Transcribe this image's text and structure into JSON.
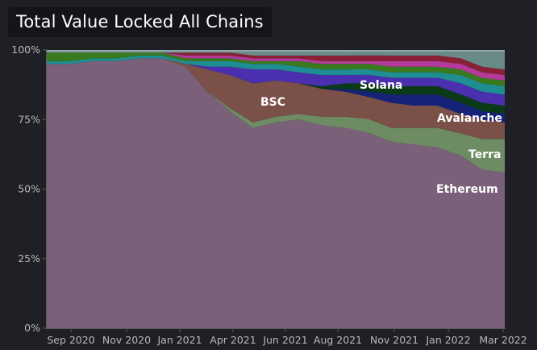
{
  "title": "Total Value Locked All Chains",
  "chart_data": {
    "type": "area",
    "stacked": true,
    "normalized": true,
    "title": "Total Value Locked All Chains",
    "x": [
      "2020-08-01",
      "2020-09-01",
      "2020-10-01",
      "2020-11-01",
      "2020-12-01",
      "2021-01-01",
      "2021-02-01",
      "2021-03-01",
      "2021-04-01",
      "2021-05-01",
      "2021-06-01",
      "2021-07-01",
      "2021-08-01",
      "2021-09-01",
      "2021-10-01",
      "2021-11-01",
      "2021-12-01",
      "2022-01-01",
      "2022-02-01",
      "2022-03-01",
      "2022-03-31"
    ],
    "x_ticks": [
      "Sep 2020",
      "Nov 2020",
      "Jan 2021",
      "Apr 2021",
      "Jun 2021",
      "Aug 2021",
      "Nov 2021",
      "Jan 2022",
      "Mar 2022"
    ],
    "y_ticks": [
      "0%",
      "25%",
      "50%",
      "75%",
      "100%"
    ],
    "ylim": [
      0,
      100
    ],
    "series": [
      {
        "name": "Ethereum",
        "color": "#7a6079",
        "values": [
          95,
          95,
          96,
          96,
          97,
          97,
          95,
          86,
          78,
          72,
          74,
          75,
          73,
          72,
          71,
          67,
          66,
          65,
          62,
          57,
          56
        ]
      },
      {
        "name": "Terra",
        "color": "#6e8c63",
        "values": [
          0,
          0,
          0,
          0,
          0,
          0,
          0,
          0,
          1,
          2,
          2,
          2,
          3,
          4,
          5,
          5,
          6,
          7,
          8,
          11,
          12
        ]
      },
      {
        "name": "BSC",
        "color": "#7a5048",
        "values": [
          0,
          0,
          0,
          0,
          0,
          0,
          1,
          8,
          12,
          14,
          13,
          11,
          10,
          9,
          8,
          9,
          8,
          8,
          7,
          7,
          6
        ]
      },
      {
        "name": "Avalanche",
        "color": "#152278",
        "values": [
          0,
          0,
          0,
          0,
          0,
          0,
          0,
          0,
          0,
          0,
          0,
          0,
          0,
          1,
          2,
          3,
          4,
          4,
          4,
          3,
          3
        ]
      },
      {
        "name": "Solana",
        "color": "#0a3a18",
        "values": [
          0,
          0,
          0,
          0,
          0,
          0,
          0,
          0,
          0,
          0,
          0,
          0,
          1,
          2,
          3,
          3,
          3,
          3,
          3,
          3,
          3
        ]
      },
      {
        "name": "",
        "color": "#4a2fae",
        "values": [
          0,
          0,
          0,
          0,
          0,
          0,
          0,
          1,
          3,
          5,
          4,
          4,
          4,
          3,
          3,
          3,
          3,
          3,
          4,
          4,
          4
        ]
      },
      {
        "name": "",
        "color": "#1e8e92",
        "values": [
          1,
          1,
          1,
          1,
          1,
          1,
          1,
          2,
          2,
          2,
          2,
          2,
          2,
          2,
          2,
          2,
          2,
          2,
          3,
          3,
          3
        ]
      },
      {
        "name": "",
        "color": "#3a7a1e",
        "values": [
          3,
          3,
          2,
          2,
          1,
          1,
          1,
          1,
          1,
          1,
          1,
          2,
          2,
          2,
          2,
          2,
          2,
          2,
          2,
          2,
          2
        ]
      },
      {
        "name": "",
        "color": "#b33a9b",
        "values": [
          0,
          0,
          0,
          0,
          0,
          0,
          1,
          1,
          1,
          1,
          1,
          1,
          1,
          1,
          1,
          2,
          2,
          2,
          2,
          2,
          2
        ]
      },
      {
        "name": "",
        "color": "#8a2035",
        "values": [
          0,
          0,
          0,
          0,
          0,
          0,
          1,
          1,
          1,
          1,
          1,
          1,
          2,
          2,
          2,
          2,
          2,
          2,
          2,
          2,
          2
        ]
      },
      {
        "name": "",
        "color": "#6a8a8a",
        "values": [
          1,
          1,
          1,
          1,
          1,
          1,
          1,
          1,
          1,
          2,
          2,
          2,
          2,
          2,
          2,
          2,
          2,
          2,
          3,
          6,
          7
        ]
      }
    ],
    "annotations": [
      "BSC",
      "Solana",
      "Avalanche",
      "Terra",
      "Ethereum"
    ],
    "grid": false,
    "legend": "none"
  }
}
